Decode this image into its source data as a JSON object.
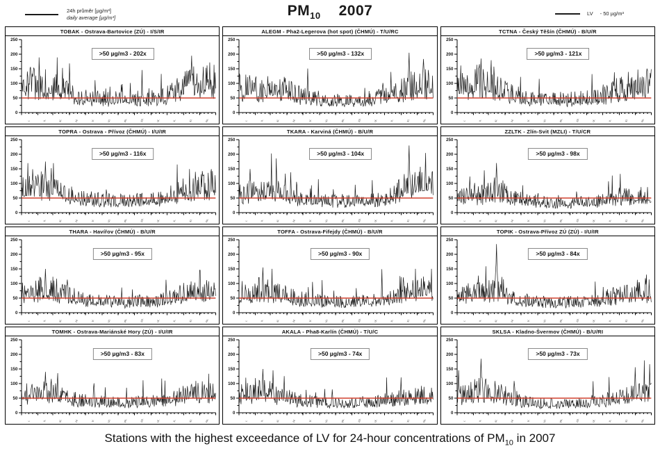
{
  "header": {
    "legend_left_line1": "24h průměr [µg/m³]",
    "legend_left_line2": "daily average [µg/m³]",
    "title_pm": "PM",
    "title_pm_sub": "10",
    "title_year": "2007",
    "legend_right_label": "LV",
    "legend_right_value": "- 50 µg/m³"
  },
  "caption": {
    "part1": "Stations with the highest exceedance of LV for 24-hour concentrations of PM",
    "sub": "10",
    "part2": " in 2007"
  },
  "colors": {
    "series": "#1a1a1a",
    "lv_line": "#d0402e",
    "axis": "#000000",
    "annot_border": "#8a8a8a"
  },
  "chart_data": {
    "type": "line",
    "ylabel": "µg/m³",
    "ylim": [
      0,
      250
    ],
    "yticks": [
      "0",
      "50",
      "100",
      "150",
      "200",
      "250"
    ],
    "lv_value": 50,
    "x_month_labels": [
      "I.",
      "II.",
      "III.",
      "IV.",
      "V.",
      "VI.",
      "VII.",
      "VIII.",
      "IX.",
      "X.",
      "XI.",
      "XII."
    ],
    "month_starts": [
      0,
      31,
      59,
      90,
      120,
      151,
      181,
      212,
      243,
      273,
      304,
      334,
      365
    ],
    "stations": [
      {
        "title": "TOBAK - Ostrava-Bartovice (ZÚ) - I/S/IR",
        "annotation": ">50 µg/m3 - 202x",
        "exceedances": 202,
        "monthly_means": [
          100,
          95,
          80,
          60,
          50,
          46,
          48,
          50,
          48,
          75,
          100,
          110
        ],
        "peak": 195,
        "peak_month": 10
      },
      {
        "title": "ALEGM - Pha2-Legerova (hot spot) (ČHMÚ) - T/U/RC",
        "annotation": ">50 µg/m3 - 132x",
        "exceedances": 132,
        "monthly_means": [
          85,
          80,
          85,
          65,
          50,
          45,
          42,
          45,
          50,
          65,
          90,
          95
        ],
        "peak": 205,
        "peak_month": 10
      },
      {
        "title": "TCTNA - Český Těšín (ČHMÚ) - B/U/R",
        "annotation": ">50 µg/m3 - 121x",
        "exceedances": 121,
        "monthly_means": [
          90,
          110,
          85,
          60,
          50,
          45,
          45,
          48,
          50,
          70,
          95,
          100
        ],
        "peak": 185,
        "peak_month": 1
      },
      {
        "title": "TOPRA - Ostrava - Přívoz (ČHMÚ) - I/U/IR",
        "annotation": ">50 µg/m3 - 116x",
        "exceedances": 116,
        "monthly_means": [
          80,
          95,
          75,
          55,
          45,
          42,
          40,
          45,
          48,
          65,
          90,
          95
        ],
        "peak": 175,
        "peak_month": 1
      },
      {
        "title": "TKARA - Karviná (ČHMÚ) - B/U/R",
        "annotation": ">50 µg/m3 - 104x",
        "exceedances": 104,
        "monthly_means": [
          70,
          85,
          70,
          50,
          42,
          40,
          38,
          42,
          45,
          60,
          95,
          105
        ],
        "peak": 230,
        "peak_month": 10
      },
      {
        "title": "ZZLTK - Zlín-Svit (MZLI) - T/U/CR",
        "annotation": ">50 µg/m3 - 98x",
        "exceedances": 98,
        "monthly_means": [
          55,
          60,
          85,
          50,
          40,
          35,
          33,
          35,
          38,
          45,
          55,
          60
        ],
        "peak": 170,
        "peak_month": 2
      },
      {
        "title": "THARA - Havířov (ČHMÚ) - B/U/R",
        "annotation": ">50 µg/m3 - 95x",
        "exceedances": 95,
        "monthly_means": [
          75,
          85,
          70,
          50,
          42,
          38,
          36,
          40,
          42,
          55,
          75,
          80
        ],
        "peak": 150,
        "peak_month": 1
      },
      {
        "title": "TOFFA - Ostrava-Fifejdy (ČHMÚ) - B/U/R",
        "annotation": ">50 µg/m3 - 90x",
        "exceedances": 90,
        "monthly_means": [
          70,
          80,
          65,
          50,
          42,
          38,
          36,
          40,
          42,
          55,
          75,
          80
        ],
        "peak": 155,
        "peak_month": 1
      },
      {
        "title": "TOPIK - Ostrava-Přívoz ZÚ (ZÚ) - I/U/IR",
        "annotation": ">50 µg/m3 - 84x",
        "exceedances": 84,
        "monthly_means": [
          65,
          70,
          90,
          50,
          40,
          36,
          35,
          38,
          40,
          55,
          70,
          75
        ],
        "peak": 235,
        "peak_month": 2
      },
      {
        "title": "TOMHK - Ostrava-Mariánské Hory (ZÚ) - I/U/IR",
        "annotation": ">50 µg/m3 - 83x",
        "exceedances": 83,
        "monthly_means": [
          65,
          75,
          60,
          45,
          40,
          36,
          34,
          38,
          40,
          52,
          70,
          72
        ],
        "peak": 140,
        "peak_month": 1
      },
      {
        "title": "AKALA - Pha8-Karlín (ČHMÚ) - T/U/C",
        "annotation": ">50 µg/m3 - 74x",
        "exceedances": 74,
        "monthly_means": [
          65,
          80,
          60,
          45,
          38,
          34,
          32,
          35,
          38,
          48,
          60,
          62
        ],
        "peak": 150,
        "peak_month": 1
      },
      {
        "title": "SKLSA - Kladno-Švermov (ČHMÚ) - B/U/RI",
        "annotation": ">50 µg/m3 - 73x",
        "exceedances": 73,
        "monthly_means": [
          60,
          85,
          70,
          45,
          36,
          32,
          30,
          33,
          36,
          48,
          62,
          65
        ],
        "peak": 185,
        "peak_month": 1
      }
    ]
  }
}
